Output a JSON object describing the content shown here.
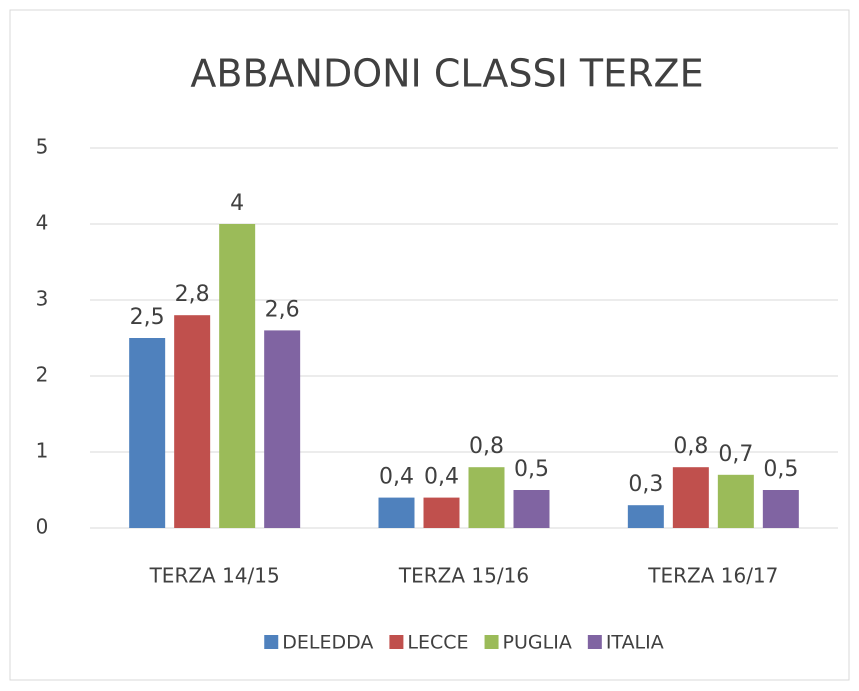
{
  "chart_data": {
    "type": "bar",
    "title": "ABBANDONI CLASSI TERZE",
    "categories": [
      "TERZA 14/15",
      "TERZA 15/16",
      "TERZA 16/17"
    ],
    "series": [
      {
        "name": "DELEDDA",
        "color": "#4f81bd",
        "values": [
          2.5,
          0.4,
          0.3
        ],
        "value_labels": [
          "2,5",
          "0,4",
          "0,3"
        ]
      },
      {
        "name": "LECCE",
        "color": "#c0504d",
        "values": [
          2.8,
          0.4,
          0.8
        ],
        "value_labels": [
          "2,8",
          "0,4",
          "0,8"
        ]
      },
      {
        "name": "PUGLIA",
        "color": "#9bbb59",
        "values": [
          4,
          0.8,
          0.7
        ],
        "value_labels": [
          "4",
          "0,8",
          "0,7"
        ]
      },
      {
        "name": "ITALIA",
        "color": "#8064a2",
        "values": [
          2.6,
          0.5,
          0.5
        ],
        "value_labels": [
          "2,6",
          "0,5",
          "0,5"
        ]
      }
    ],
    "ylim": [
      0,
      5
    ],
    "yticks": [
      0,
      1,
      2,
      3,
      4,
      5
    ],
    "grid": true,
    "legend": "bottom"
  }
}
